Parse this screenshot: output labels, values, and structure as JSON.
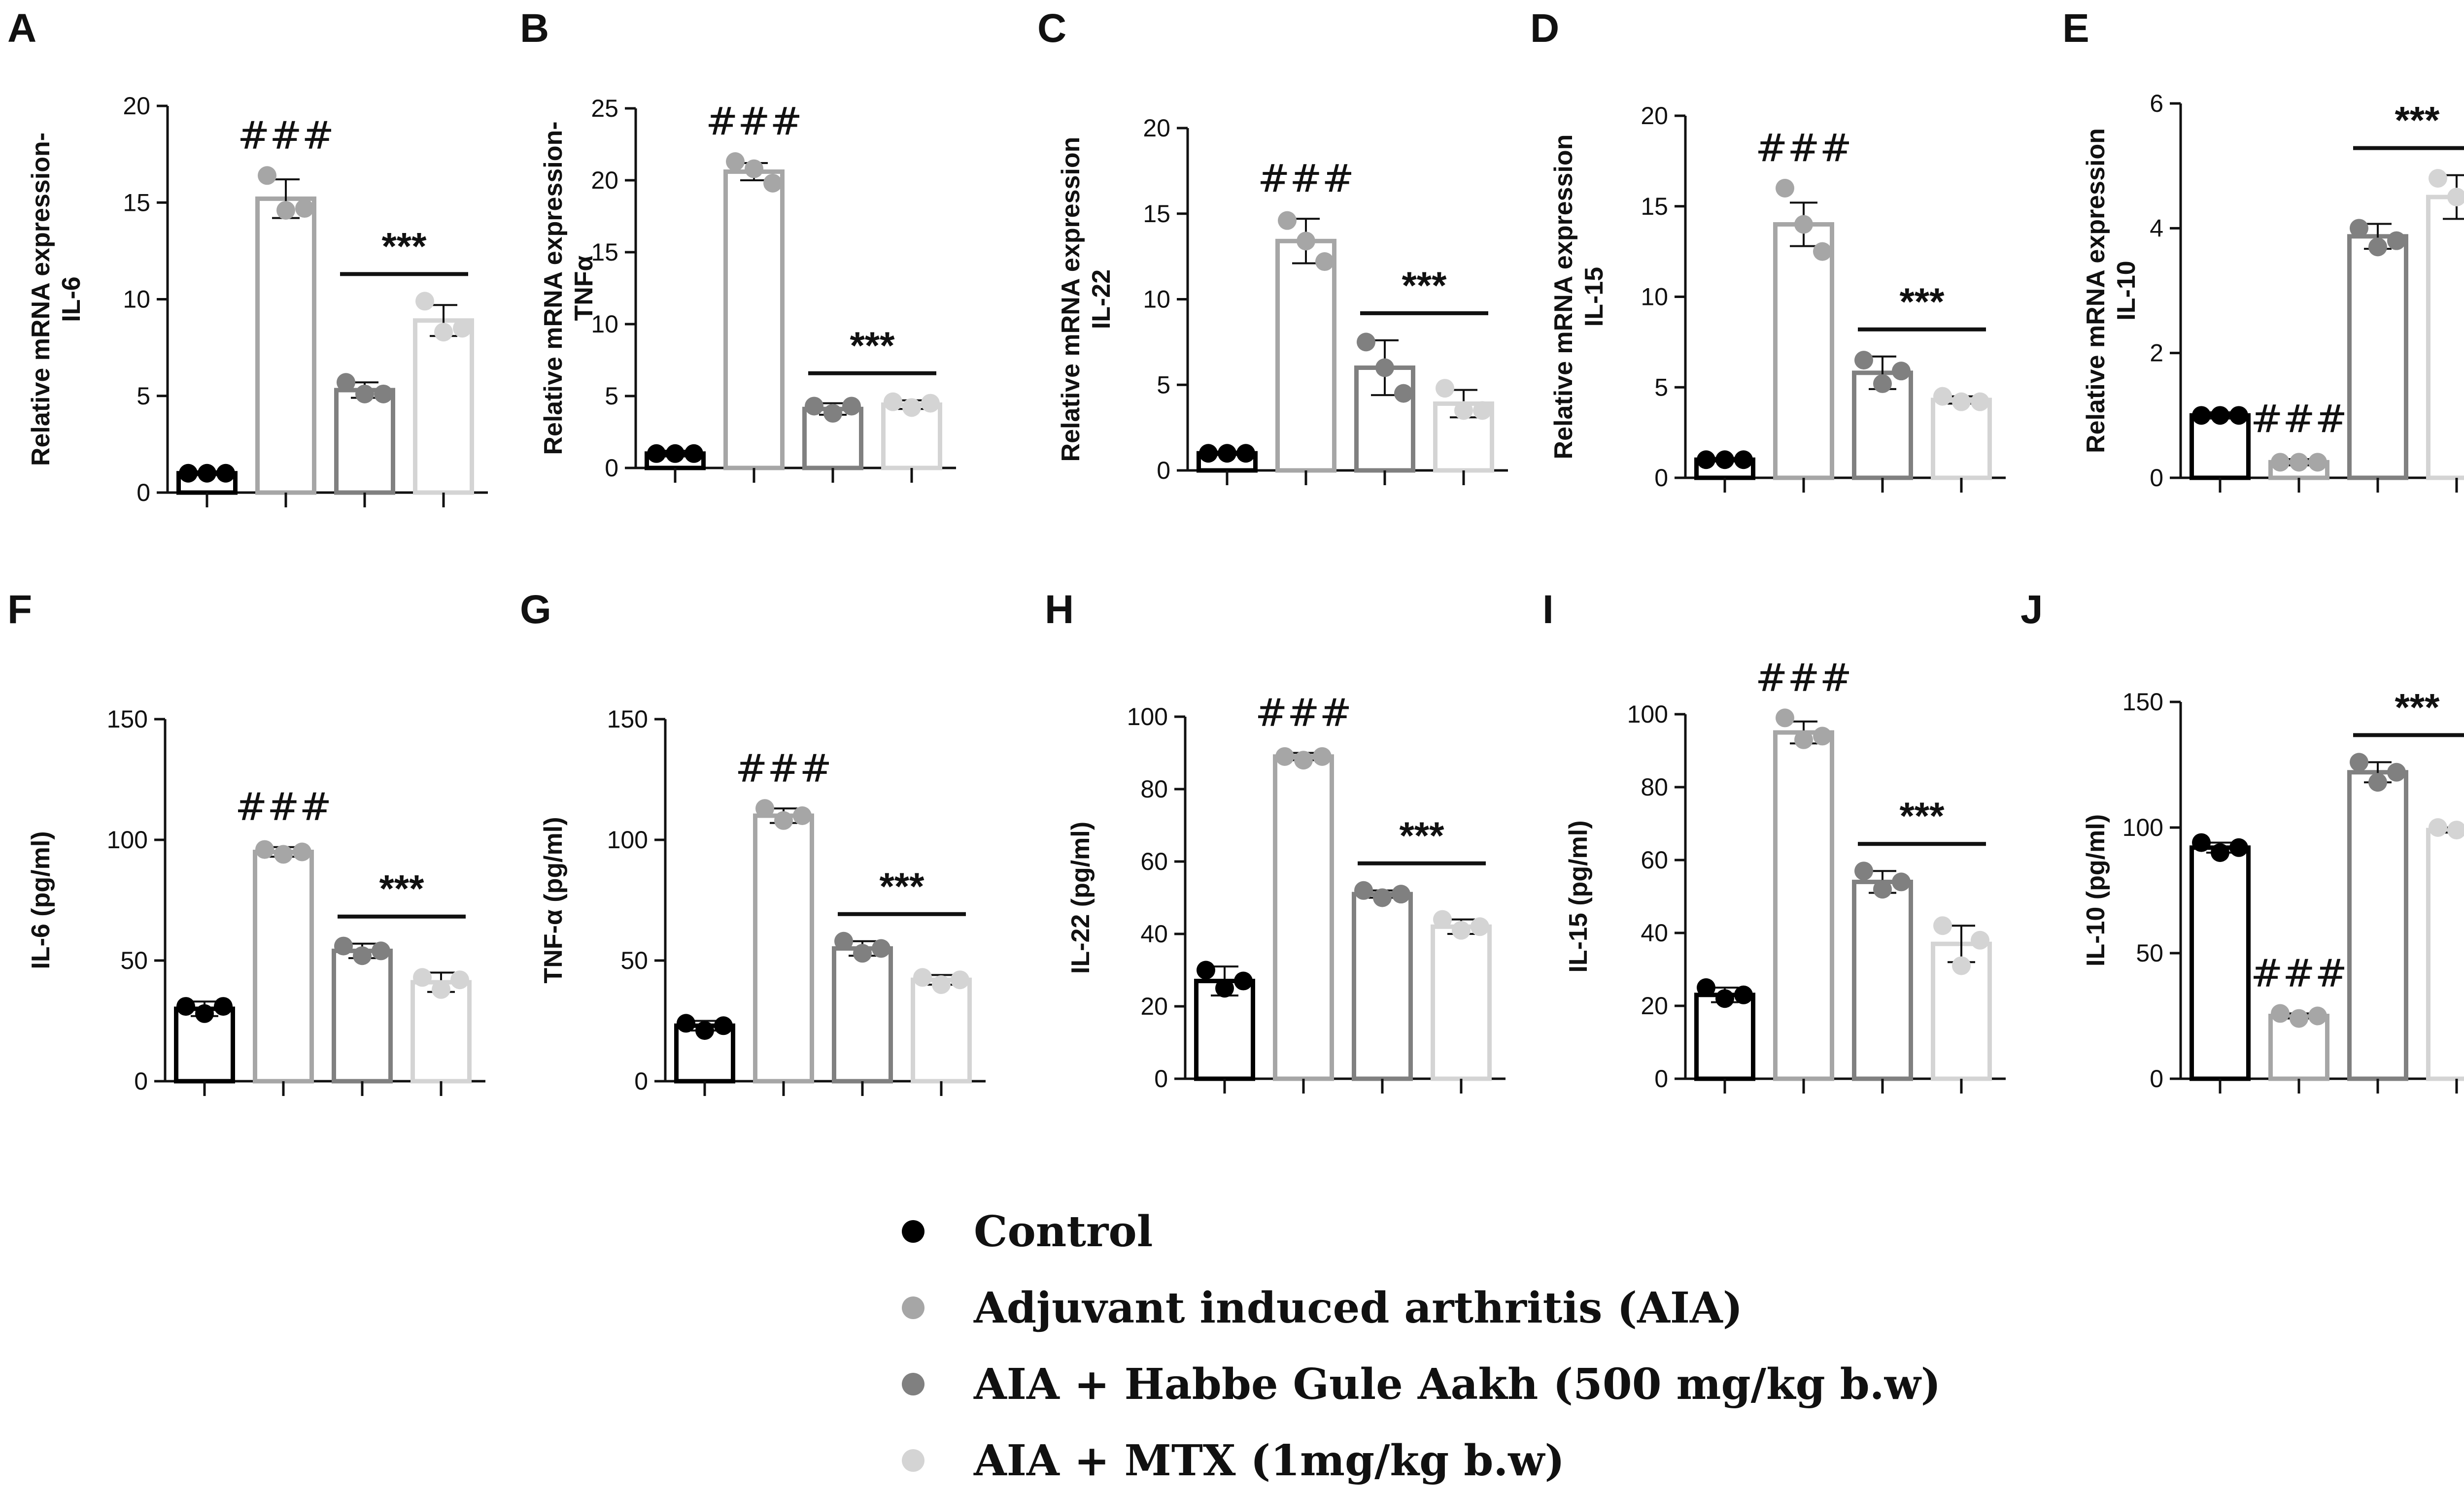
{
  "groups": [
    {
      "name": "Control",
      "color": "#000000"
    },
    {
      "name": "Adjuvant induced arthritis (AIA)",
      "color": "#a6a6a6"
    },
    {
      "name": "AIA + Habbe Gule Aakh (500 mg/kg b.w)",
      "color": "#808080"
    },
    {
      "name": "AIA + MTX (1mg/kg b.w)",
      "color": "#d4d4d4"
    }
  ],
  "chart_data": [
    {
      "type": "bar",
      "panel": "A",
      "ylabel": [
        "Relative mRNA expression-",
        "IL-6"
      ],
      "ylim": [
        0,
        20
      ],
      "yticks": [
        0,
        5,
        10,
        15,
        20
      ],
      "values": [
        1.0,
        15.2,
        5.3,
        8.9
      ],
      "sd": [
        0.1,
        1.0,
        0.4,
        0.8
      ],
      "points": [
        [
          1.0,
          1.0,
          1.0
        ],
        [
          16.4,
          14.6,
          14.7
        ],
        [
          5.7,
          5.1,
          5.1
        ],
        [
          9.9,
          8.3,
          8.5
        ]
      ],
      "annotations": [
        {
          "text": "###",
          "over": [
            1
          ]
        },
        {
          "text": "***",
          "over": [
            2,
            3
          ]
        }
      ]
    },
    {
      "type": "bar",
      "panel": "B",
      "ylabel": [
        "Relative mRNA expression-",
        "TNFα"
      ],
      "ylim": [
        0,
        25
      ],
      "yticks": [
        0,
        5,
        10,
        15,
        20,
        25
      ],
      "values": [
        1.0,
        20.6,
        4.1,
        4.4
      ],
      "sd": [
        0.2,
        0.6,
        0.4,
        0.3
      ],
      "points": [
        [
          1.0,
          1.0,
          1.0
        ],
        [
          21.3,
          20.8,
          19.8
        ],
        [
          4.3,
          3.8,
          4.3
        ],
        [
          4.6,
          4.2,
          4.5
        ]
      ],
      "annotations": [
        {
          "text": "###",
          "over": [
            1
          ]
        },
        {
          "text": "***",
          "over": [
            2,
            3
          ]
        }
      ]
    },
    {
      "type": "bar",
      "panel": "C",
      "ylabel": [
        "Relative mRNA expression",
        "IL-22"
      ],
      "ylim": [
        0,
        20
      ],
      "yticks": [
        0,
        5,
        10,
        15,
        20
      ],
      "values": [
        1.0,
        13.4,
        6.0,
        3.9
      ],
      "sd": [
        0.1,
        1.3,
        1.6,
        0.8
      ],
      "points": [
        [
          1.0,
          1.0,
          1.0
        ],
        [
          14.6,
          13.4,
          12.2
        ],
        [
          7.5,
          6.0,
          4.5
        ],
        [
          4.8,
          3.5,
          3.5
        ]
      ],
      "annotations": [
        {
          "text": "###",
          "over": [
            1
          ]
        },
        {
          "text": "***",
          "over": [
            2,
            3
          ]
        }
      ]
    },
    {
      "type": "bar",
      "panel": "D",
      "ylabel": [
        "Relative mRNA expression",
        "IL-15"
      ],
      "ylim": [
        0,
        20
      ],
      "yticks": [
        0,
        5,
        10,
        15,
        20
      ],
      "values": [
        1.0,
        14.0,
        5.8,
        4.3
      ],
      "sd": [
        0.1,
        1.2,
        0.9,
        0.2
      ],
      "points": [
        [
          1.0,
          1.0,
          1.0
        ],
        [
          16.0,
          14.0,
          12.5
        ],
        [
          6.5,
          5.2,
          5.9
        ],
        [
          4.5,
          4.2,
          4.2
        ]
      ],
      "annotations": [
        {
          "text": "###",
          "over": [
            1
          ]
        },
        {
          "text": "***",
          "over": [
            2,
            3
          ]
        }
      ]
    },
    {
      "type": "bar",
      "panel": "E",
      "ylabel": [
        "Relative mRNA expression",
        "IL-10"
      ],
      "ylim": [
        0,
        6
      ],
      "yticks": [
        0,
        2,
        4,
        6
      ],
      "values": [
        1.0,
        0.25,
        3.87,
        4.5
      ],
      "sd": [
        0.05,
        0.05,
        0.2,
        0.35
      ],
      "points": [
        [
          1.0,
          1.0,
          1.0
        ],
        [
          0.25,
          0.25,
          0.25
        ],
        [
          4.0,
          3.7,
          3.8
        ],
        [
          4.8,
          4.5,
          4.2
        ]
      ],
      "annotations": [
        {
          "text": "###",
          "over": [
            1
          ]
        },
        {
          "text": "***",
          "over": [
            2,
            3
          ]
        }
      ]
    },
    {
      "type": "bar",
      "panel": "F",
      "ylabel": [
        "IL-6 (pg/ml)"
      ],
      "ylim": [
        0,
        150
      ],
      "yticks": [
        0,
        50,
        100,
        150
      ],
      "values": [
        30,
        95,
        54,
        41
      ],
      "sd": [
        3,
        2,
        3,
        4
      ],
      "points": [
        [
          31,
          28,
          31
        ],
        [
          96,
          94,
          95
        ],
        [
          56,
          52,
          54
        ],
        [
          43,
          38,
          42
        ]
      ],
      "annotations": [
        {
          "text": "###",
          "over": [
            1
          ]
        },
        {
          "text": "***",
          "over": [
            2,
            3
          ]
        }
      ]
    },
    {
      "type": "bar",
      "panel": "G",
      "ylabel": [
        "TNF-α (pg/ml)"
      ],
      "ylim": [
        0,
        150
      ],
      "yticks": [
        0,
        50,
        100,
        150
      ],
      "values": [
        23,
        110,
        55,
        42
      ],
      "sd": [
        2,
        3,
        3,
        2
      ],
      "points": [
        [
          24,
          21,
          23
        ],
        [
          113,
          108,
          110
        ],
        [
          58,
          53,
          55
        ],
        [
          43,
          40,
          42
        ]
      ],
      "annotations": [
        {
          "text": "###",
          "over": [
            1
          ]
        },
        {
          "text": "***",
          "over": [
            2,
            3
          ]
        }
      ]
    },
    {
      "type": "bar",
      "panel": "H",
      "ylabel": [
        "IL-22 (pg/ml)"
      ],
      "ylim": [
        0,
        100
      ],
      "yticks": [
        0,
        20,
        40,
        60,
        80,
        100
      ],
      "values": [
        27,
        89,
        51,
        42
      ],
      "sd": [
        4,
        1,
        1,
        2
      ],
      "points": [
        [
          30,
          25,
          27
        ],
        [
          89,
          88,
          89
        ],
        [
          52,
          50,
          51
        ],
        [
          44,
          41,
          42
        ]
      ],
      "annotations": [
        {
          "text": "###",
          "over": [
            1
          ]
        },
        {
          "text": "***",
          "over": [
            2,
            3
          ]
        }
      ]
    },
    {
      "type": "bar",
      "panel": "I",
      "ylabel": [
        "IL-15 (pg/ml)"
      ],
      "ylim": [
        0,
        100
      ],
      "yticks": [
        0,
        20,
        40,
        60,
        80,
        100
      ],
      "values": [
        23,
        95,
        54,
        37
      ],
      "sd": [
        2,
        3,
        3,
        5
      ],
      "points": [
        [
          25,
          22,
          23
        ],
        [
          99,
          93,
          94
        ],
        [
          57,
          52,
          54
        ],
        [
          42,
          31,
          38
        ]
      ],
      "annotations": [
        {
          "text": "###",
          "over": [
            1
          ]
        },
        {
          "text": "***",
          "over": [
            2,
            3
          ]
        }
      ]
    },
    {
      "type": "bar",
      "panel": "J",
      "ylabel": [
        "IL-10 (pg/ml)"
      ],
      "ylim": [
        0,
        150
      ],
      "yticks": [
        0,
        50,
        100,
        150
      ],
      "values": [
        92,
        25,
        122,
        99
      ],
      "sd": [
        2,
        1,
        4,
        1
      ],
      "points": [
        [
          94,
          90,
          92
        ],
        [
          26,
          24,
          25
        ],
        [
          126,
          118,
          122
        ],
        [
          100,
          99,
          99
        ]
      ],
      "annotations": [
        {
          "text": "###",
          "over": [
            1
          ]
        },
        {
          "text": "***",
          "over": [
            2,
            3
          ]
        }
      ]
    }
  ]
}
